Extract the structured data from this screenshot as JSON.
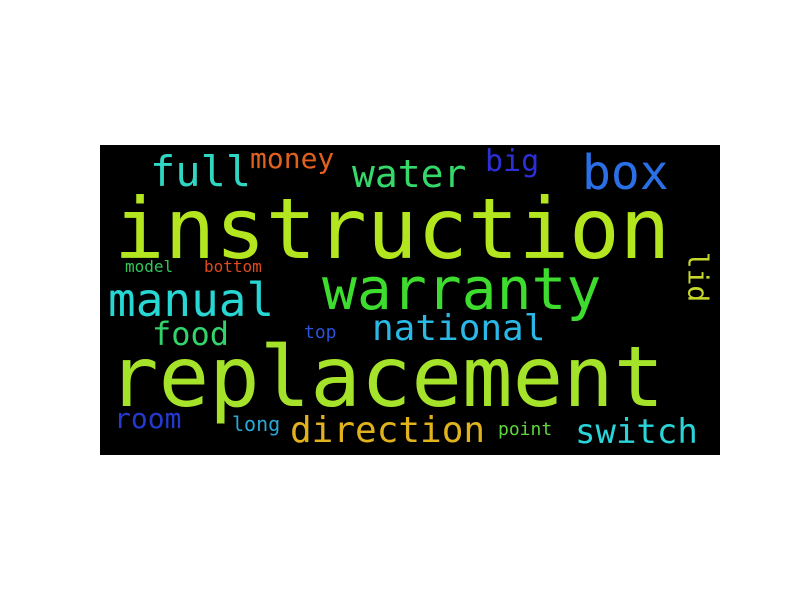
{
  "cloud": {
    "background": "#000000",
    "words": [
      {
        "text": "instruction",
        "color": "#b3e61f"
      },
      {
        "text": "replacement",
        "color": "#a5e32a"
      },
      {
        "text": "warranty",
        "color": "#3ddc2e"
      },
      {
        "text": "manual",
        "color": "#27d7d4"
      },
      {
        "text": "box",
        "color": "#2a6fe6"
      },
      {
        "text": "full",
        "color": "#2fd6c2"
      },
      {
        "text": "water",
        "color": "#35d96a"
      },
      {
        "text": "national",
        "color": "#2ab8e6"
      },
      {
        "text": "direction",
        "color": "#e0b21c"
      },
      {
        "text": "switch",
        "color": "#2ad4d8"
      },
      {
        "text": "food",
        "color": "#33d36b"
      },
      {
        "text": "room",
        "color": "#2439cf"
      },
      {
        "text": "money",
        "color": "#e0601e"
      },
      {
        "text": "big",
        "color": "#2c2fd6"
      },
      {
        "text": "lid",
        "color": "#c6d82b"
      },
      {
        "text": "model",
        "color": "#33c75a"
      },
      {
        "text": "bottom",
        "color": "#e04a1d"
      },
      {
        "text": "top",
        "color": "#2a52d8"
      },
      {
        "text": "long",
        "color": "#2aa7d6"
      },
      {
        "text": "point",
        "color": "#5ed63b"
      }
    ]
  }
}
